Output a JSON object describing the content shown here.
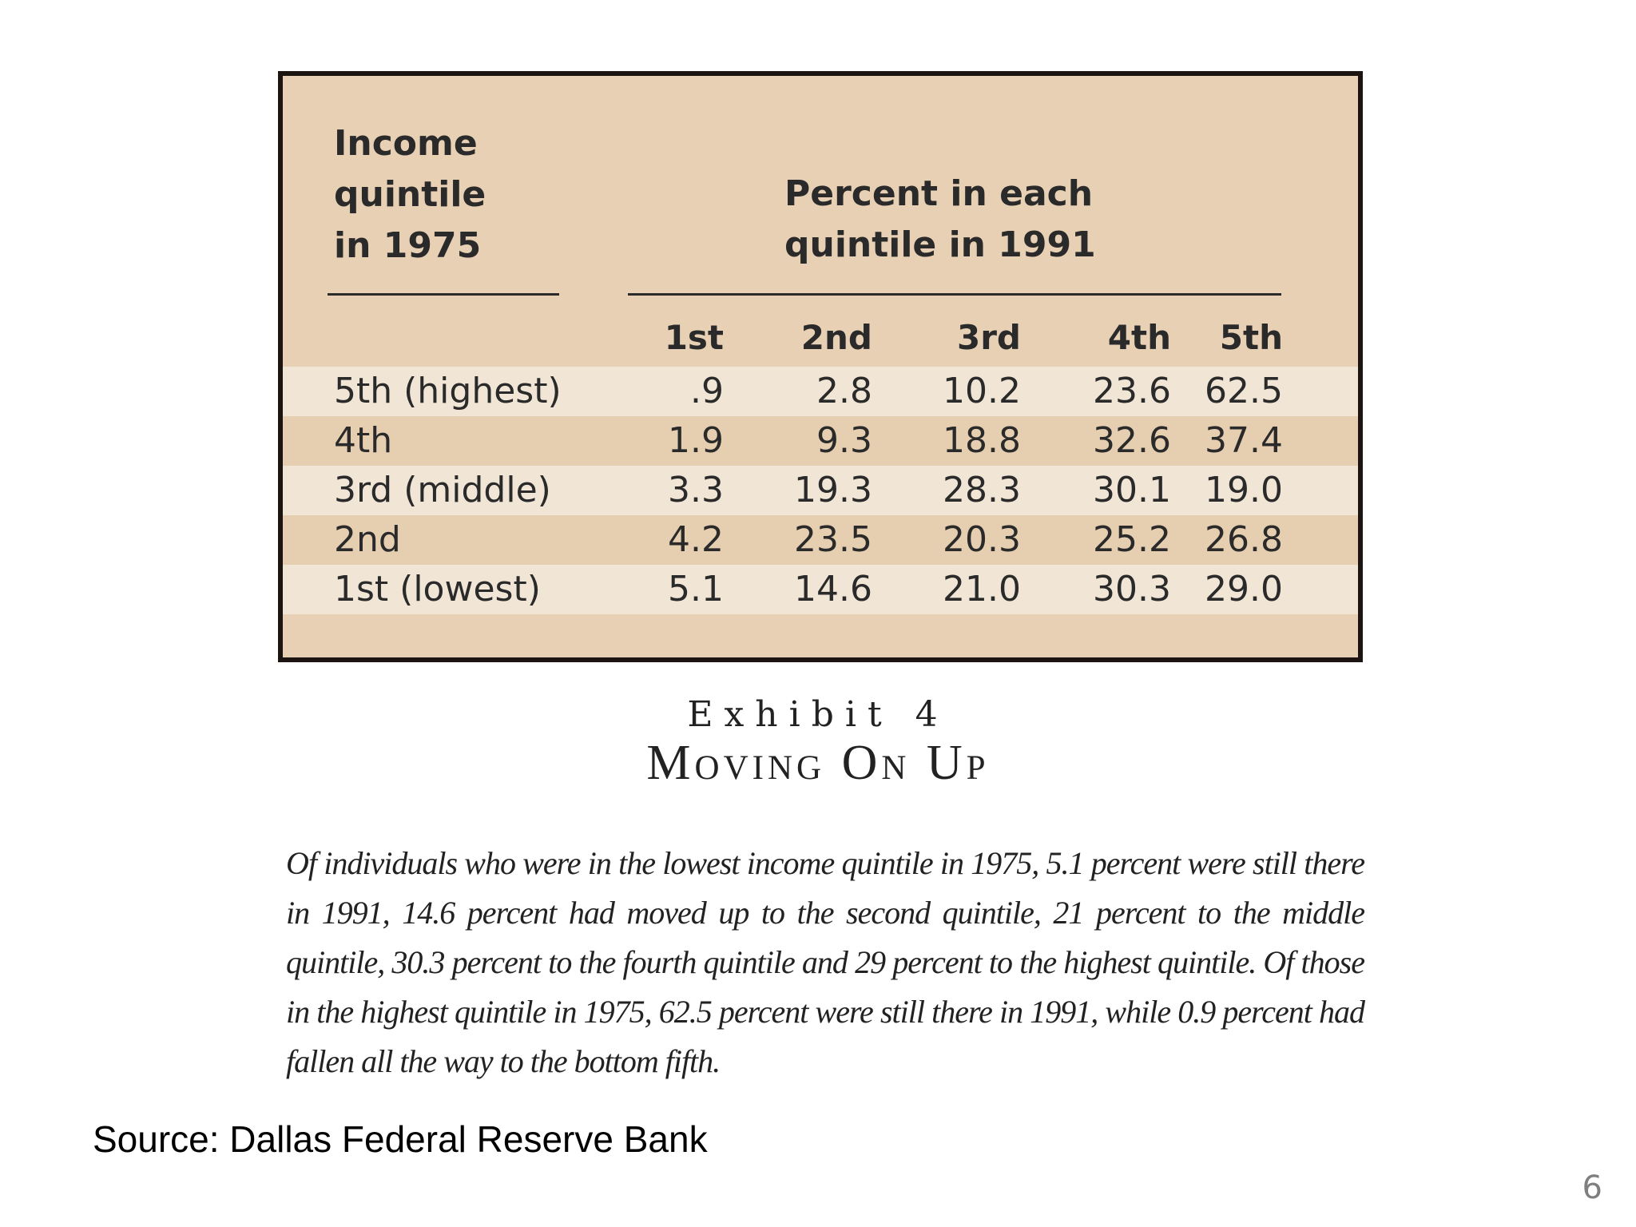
{
  "table": {
    "row_header": [
      "Income",
      "quintile",
      "in 1975"
    ],
    "column_group_header": [
      "Percent in each",
      "quintile in 1991"
    ],
    "columns": [
      "1st",
      "2nd",
      "3rd",
      "4th",
      "5th"
    ],
    "rows": [
      {
        "label": "5th (highest)",
        "values": [
          ".9",
          "2.8",
          "10.2",
          "23.6",
          "62.5"
        ]
      },
      {
        "label": "4th",
        "values": [
          "1.9",
          "9.3",
          "18.8",
          "32.6",
          "37.4"
        ]
      },
      {
        "label": "3rd (middle)",
        "values": [
          "3.3",
          "19.3",
          "28.3",
          "30.1",
          "19.0"
        ]
      },
      {
        "label": "2nd",
        "values": [
          "4.2",
          "23.5",
          "20.3",
          "25.2",
          "26.8"
        ]
      },
      {
        "label": "1st (lowest)",
        "values": [
          "5.1",
          "14.6",
          "21.0",
          "30.3",
          "29.0"
        ]
      }
    ]
  },
  "exhibit": {
    "label": "Exhibit 4",
    "title": "Moving On Up"
  },
  "caption": "Of individuals who were in the lowest income quintile in 1975, 5.1 percent were still there in 1991, 14.6 percent had moved up to the second quintile, 21 percent to the middle quintile, 30.3 percent to the fourth quintile and 29 percent to the highest quintile. Of those in the highest quintile in 1975, 62.5 percent were still there in 1991, while 0.9 percent had fallen all the way to the bottom fifth.",
  "source": "Source: Dallas Federal Reserve Bank",
  "page_number": "6",
  "colors": {
    "table_background": "#e8d0b4",
    "row_light": "#f1e6d6",
    "row_dark": "#e6ceb0",
    "border": "#1c1410"
  }
}
